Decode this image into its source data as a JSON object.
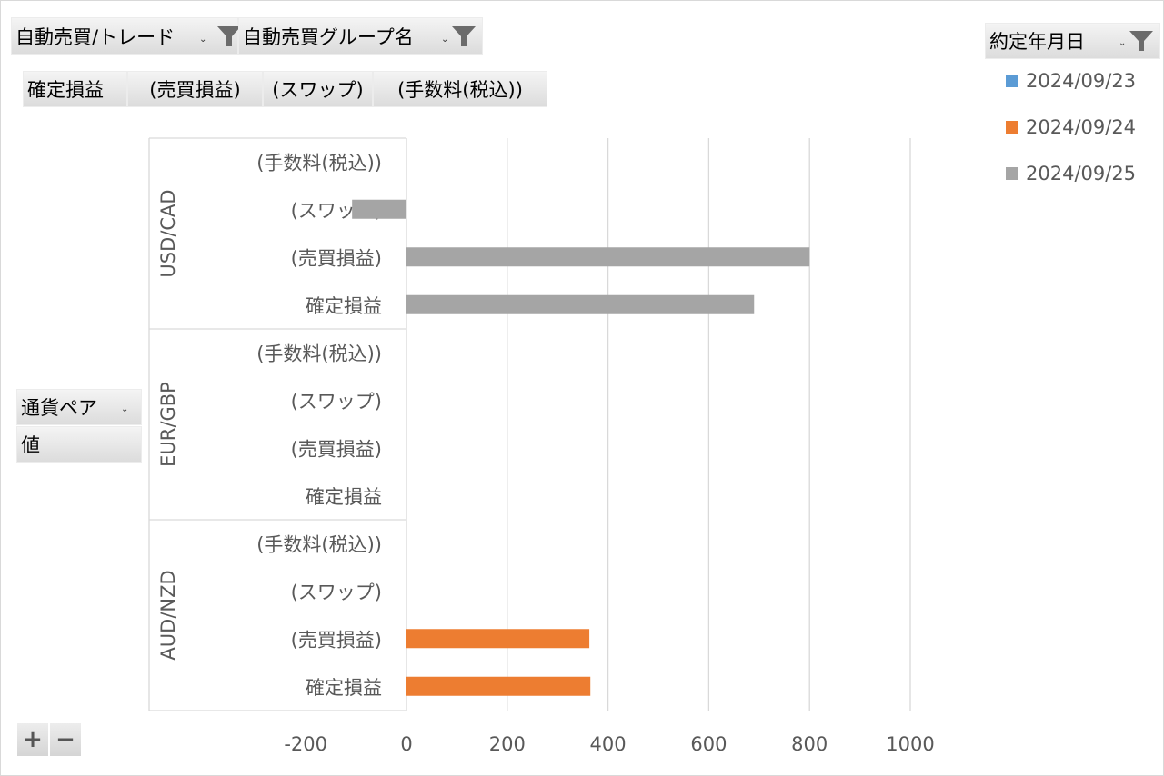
{
  "filters": {
    "auto_trade": "自動売買/トレード",
    "auto_group": "自動売買グループ名"
  },
  "value_fields": [
    "確定損益",
    "(売買損益)",
    "(スワップ)",
    "(手数料(税込))"
  ],
  "row_fields": {
    "pair": "通貨ペア",
    "value": "値"
  },
  "legend_field": "約定年月日",
  "zoom": {
    "plus": "+",
    "minus": "−"
  },
  "chart_data": {
    "type": "bar",
    "orientation": "horizontal",
    "groups": [
      {
        "name": "USD/CAD",
        "categories": [
          "(手数料(税込))",
          "(スワップ)",
          "(売買損益)",
          "確定損益"
        ]
      },
      {
        "name": "EUR/GBP",
        "categories": [
          "(手数料(税込))",
          "(スワップ)",
          "(売買損益)",
          "確定損益"
        ]
      },
      {
        "name": "AUD/NZD",
        "categories": [
          "(手数料(税込))",
          "(スワップ)",
          "(売買損益)",
          "確定損益"
        ]
      }
    ],
    "series": [
      {
        "name": "2024/09/23",
        "color": "#5b9bd5",
        "values": [
          [
            0,
            0,
            0,
            0
          ],
          [
            0,
            0,
            0,
            0
          ],
          [
            0,
            0,
            0,
            0
          ]
        ]
      },
      {
        "name": "2024/09/24",
        "color": "#ed7d31",
        "values": [
          [
            0,
            0,
            0,
            0
          ],
          [
            0,
            0,
            0,
            0
          ],
          [
            0,
            0,
            363,
            365
          ]
        ]
      },
      {
        "name": "2024/09/25",
        "color": "#a5a5a5",
        "values": [
          [
            0,
            -108,
            800,
            690
          ],
          [
            0,
            0,
            0,
            0
          ],
          [
            0,
            0,
            0,
            0
          ]
        ]
      }
    ],
    "xlim": [
      -200,
      1000
    ],
    "xticks": [
      -200,
      0,
      200,
      400,
      600,
      800,
      1000
    ],
    "grid": true,
    "legend": "top-right"
  }
}
